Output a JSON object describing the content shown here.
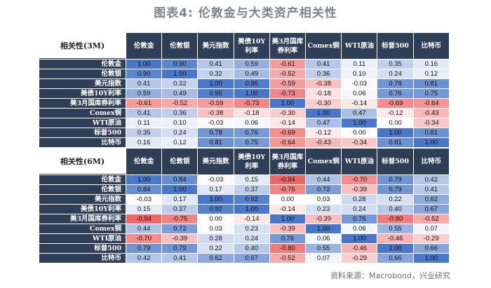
{
  "title": "图表4: 伦敦金与大类资产相关性",
  "footnote": "资料来源：Macrobond，兴业研究",
  "colors": {
    "header_bg": "#2e3f57",
    "positive": "#4a77c9",
    "negative": "#ef5b5b",
    "neutral": "#ffffff"
  },
  "chart_data": [
    {
      "type": "table",
      "title": "相关性(3M)",
      "columns": [
        "伦敦金",
        "伦敦银",
        "美元指数",
        "美债10Y利率",
        "美3月国库券利率",
        "Comex铜",
        "WTI原油",
        "标普500",
        "比特币"
      ],
      "rows": [
        {
          "label": "伦敦金",
          "values": [
            "1.00",
            "0.90",
            "0.41",
            "0.59",
            "-0.61",
            "0.41",
            "0.11",
            "0.35",
            "0.16"
          ]
        },
        {
          "label": "伦敦银",
          "values": [
            "0.90",
            "1.00",
            "0.32",
            "0.49",
            "-0.52",
            "0.36",
            "0.10",
            "0.24",
            "0.12"
          ]
        },
        {
          "label": "美元指数",
          "values": [
            "0.41",
            "0.32",
            "1.00",
            "0.95",
            "-0.59",
            "-0.38",
            "-0.03",
            "0.78",
            "0.81"
          ]
        },
        {
          "label": "美债10Y利率",
          "values": [
            "0.59",
            "0.49",
            "0.95",
            "1.00",
            "-0.73",
            "-0.18",
            "0.06",
            "0.76",
            "0.75"
          ]
        },
        {
          "label": "美3月国库券利率",
          "values": [
            "-0.61",
            "-0.52",
            "-0.59",
            "-0.73",
            "1.00",
            "-0.30",
            "-0.14",
            "-0.69",
            "-0.64"
          ]
        },
        {
          "label": "Comex铜",
          "values": [
            "0.41",
            "0.36",
            "-0.38",
            "-0.18",
            "-0.30",
            "1.00",
            "0.47",
            "-0.12",
            "-0.43"
          ]
        },
        {
          "label": "WTI原油",
          "values": [
            "0.11",
            "0.10",
            "-0.03",
            "0.06",
            "-0.14",
            "0.47",
            "1.00",
            "0.00",
            "-0.34"
          ]
        },
        {
          "label": "标普500",
          "values": [
            "0.35",
            "0.24",
            "0.78",
            "0.76",
            "-0.69",
            "-0.12",
            "0.00",
            "1.00",
            "0.81"
          ]
        },
        {
          "label": "比特币",
          "values": [
            "0.16",
            "0.12",
            "0.81",
            "0.75",
            "-0.64",
            "-0.43",
            "-0.34",
            "0.81",
            "1.00"
          ]
        }
      ]
    },
    {
      "type": "table",
      "title": "相关性(6M)",
      "columns": [
        "伦敦金",
        "伦敦银",
        "美元指数",
        "美债10Y利率",
        "美3月国库券利率",
        "Comex铜",
        "WTI原油",
        "标普500",
        "比特币"
      ],
      "rows": [
        {
          "label": "伦敦金",
          "values": [
            "1.00",
            "0.84",
            "-0.03",
            "0.15",
            "-0.94",
            "0.44",
            "-0.70",
            "0.79",
            "0.42"
          ]
        },
        {
          "label": "伦敦银",
          "values": [
            "0.84",
            "1.00",
            "0.17",
            "0.37",
            "-0.75",
            "0.72",
            "-0.39",
            "0.79",
            "0.41"
          ]
        },
        {
          "label": "美元指数",
          "values": [
            "-0.03",
            "0.17",
            "1.00",
            "0.92",
            "0.00",
            "0.03",
            "0.28",
            "0.22",
            "0.62"
          ]
        },
        {
          "label": "美债10Y利率",
          "values": [
            "0.15",
            "0.37",
            "0.92",
            "1.00",
            "-0.14",
            "0.23",
            "0.24",
            "0.40",
            "0.67"
          ]
        },
        {
          "label": "美3月国库券利率",
          "values": [
            "-0.94",
            "-0.75",
            "0.00",
            "-0.14",
            "1.00",
            "-0.39",
            "0.76",
            "-0.80",
            "-0.52"
          ]
        },
        {
          "label": "Comex铜",
          "values": [
            "0.44",
            "0.72",
            "0.03",
            "0.23",
            "-0.39",
            "1.00",
            "0.06",
            "0.55",
            "0.07"
          ]
        },
        {
          "label": "WTI原油",
          "values": [
            "-0.70",
            "-0.39",
            "0.28",
            "0.24",
            "0.76",
            "0.06",
            "1.00",
            "-0.46",
            "-0.29"
          ]
        },
        {
          "label": "标普500",
          "values": [
            "0.79",
            "0.79",
            "0.22",
            "0.40",
            "-0.80",
            "0.55",
            "-0.46",
            "1.00",
            "0.66"
          ]
        },
        {
          "label": "比特币",
          "values": [
            "0.42",
            "0.41",
            "0.62",
            "0.67",
            "-0.52",
            "0.07",
            "-0.29",
            "0.66",
            "1.00"
          ]
        }
      ]
    }
  ]
}
